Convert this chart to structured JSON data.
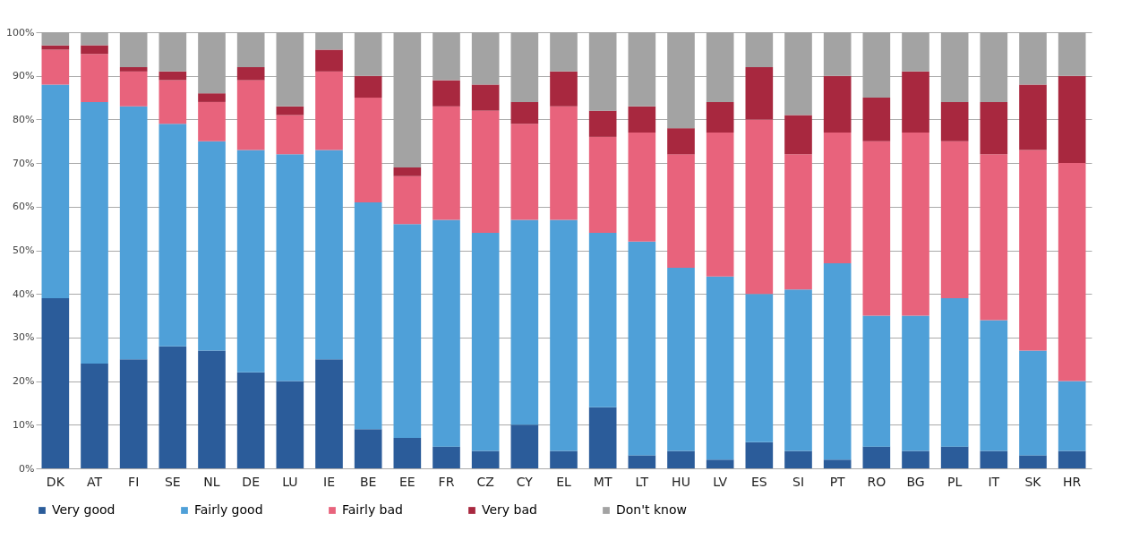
{
  "chart_data": {
    "type": "bar",
    "stacked": true,
    "categories": [
      "DK",
      "AT",
      "FI",
      "SE",
      "NL",
      "DE",
      "LU",
      "IE",
      "BE",
      "EE",
      "FR",
      "CZ",
      "CY",
      "EL",
      "MT",
      "LT",
      "HU",
      "LV",
      "ES",
      "SI",
      "PT",
      "RO",
      "BG",
      "PL",
      "IT",
      "SK",
      "HR"
    ],
    "series": [
      {
        "name": "Very good",
        "color": "#2b5c9a",
        "values": [
          39,
          24,
          25,
          28,
          27,
          22,
          20,
          25,
          9,
          7,
          5,
          4,
          10,
          4,
          14,
          3,
          4,
          2,
          6,
          4,
          2,
          5,
          4,
          5,
          4,
          3,
          4
        ]
      },
      {
        "name": "Fairly good",
        "color": "#4fa0d8",
        "values": [
          49,
          60,
          58,
          51,
          48,
          51,
          52,
          48,
          52,
          49,
          52,
          50,
          47,
          53,
          40,
          49,
          42,
          42,
          34,
          37,
          45,
          30,
          31,
          34,
          30,
          24,
          16
        ]
      },
      {
        "name": "Fairly bad",
        "color": "#e8637c",
        "values": [
          8,
          11,
          8,
          10,
          9,
          16,
          9,
          18,
          24,
          11,
          26,
          28,
          22,
          26,
          22,
          25,
          26,
          33,
          40,
          31,
          30,
          40,
          42,
          36,
          38,
          46,
          50
        ]
      },
      {
        "name": "Very bad",
        "color": "#a8283f",
        "values": [
          1,
          2,
          1,
          2,
          2,
          3,
          2,
          5,
          5,
          2,
          6,
          6,
          5,
          8,
          6,
          6,
          6,
          7,
          12,
          9,
          13,
          10,
          14,
          9,
          12,
          15,
          20
        ]
      },
      {
        "name": "Don't know",
        "color": "#a3a3a3",
        "values": [
          3,
          3,
          8,
          9,
          14,
          8,
          17,
          4,
          10,
          31,
          11,
          12,
          16,
          9,
          18,
          17,
          22,
          16,
          8,
          19,
          10,
          15,
          9,
          16,
          16,
          12,
          10
        ]
      }
    ],
    "ylim": [
      0,
      100
    ],
    "yticks": [
      {
        "value": 0,
        "label": "0%"
      },
      {
        "value": 10,
        "label": "10%"
      },
      {
        "value": 20,
        "label": "20%"
      },
      {
        "value": 30,
        "label": "30%"
      },
      {
        "value": 40,
        "label": "40%"
      },
      {
        "value": 50,
        "label": "50%"
      },
      {
        "value": 60,
        "label": "60%"
      },
      {
        "value": 70,
        "label": "70%"
      },
      {
        "value": 80,
        "label": "80%"
      },
      {
        "value": 90,
        "label": "90%"
      },
      {
        "value": 100,
        "label": "100%"
      }
    ],
    "grid": "y",
    "legend": "bottom"
  }
}
